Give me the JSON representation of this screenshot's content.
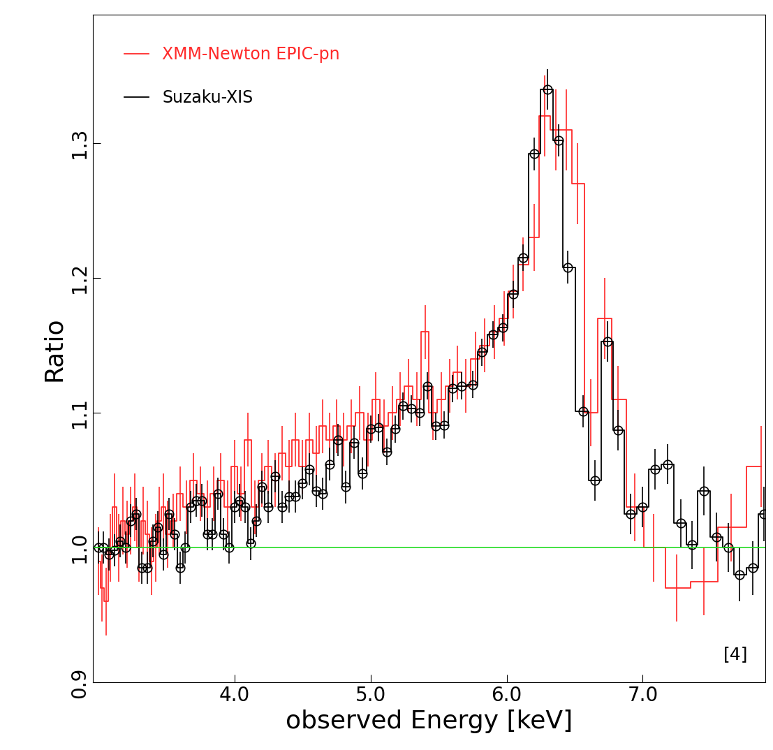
{
  "chart_data": {
    "type": "line",
    "x_label": "observed Energy [keV]",
    "y_label": "Ratio",
    "annotations": [
      "[4]"
    ],
    "xlim": [
      2.96,
      7.9
    ],
    "ylim": [
      0.9,
      1.395
    ],
    "xticks": [
      4.0,
      5.0,
      6.0,
      7.0
    ],
    "yticks": [
      0.9,
      1.0,
      1.1,
      1.2,
      1.3
    ],
    "reference_value": 1.0,
    "reference_color": "#22dd22",
    "legend": "upper left",
    "series": [
      {
        "name": "XMM-Newton EPIC-pn",
        "color": "#ff2a2a",
        "line_style": "steps",
        "marker": "none",
        "x": [
          3.0,
          3.03,
          3.06,
          3.09,
          3.12,
          3.15,
          3.18,
          3.21,
          3.24,
          3.27,
          3.3,
          3.33,
          3.36,
          3.39,
          3.42,
          3.45,
          3.48,
          3.51,
          3.55,
          3.6,
          3.65,
          3.7,
          3.75,
          3.8,
          3.85,
          3.9,
          3.95,
          4.0,
          4.05,
          4.1,
          4.15,
          4.2,
          4.25,
          4.3,
          4.35,
          4.4,
          4.45,
          4.5,
          4.55,
          4.6,
          4.65,
          4.7,
          4.75,
          4.8,
          4.86,
          4.92,
          4.98,
          5.04,
          5.1,
          5.16,
          5.22,
          5.28,
          5.34,
          5.4,
          5.46,
          5.52,
          5.58,
          5.64,
          5.7,
          5.77,
          5.84,
          5.91,
          5.98,
          6.05,
          6.12,
          6.2,
          6.28,
          6.36,
          6.44,
          6.52,
          6.62,
          6.72,
          6.82,
          6.94,
          7.08,
          7.25,
          7.45,
          7.65,
          7.87
        ],
        "values": [
          0.99,
          0.97,
          0.96,
          1.0,
          1.03,
          1.0,
          1.02,
          1.01,
          1.02,
          1.03,
          1.0,
          1.02,
          1.01,
          0.99,
          1.0,
          1.02,
          1.03,
          1.01,
          1.02,
          1.04,
          1.03,
          1.05,
          1.04,
          1.03,
          1.04,
          1.05,
          1.03,
          1.06,
          1.04,
          1.08,
          1.03,
          1.05,
          1.06,
          1.05,
          1.07,
          1.06,
          1.08,
          1.06,
          1.08,
          1.07,
          1.09,
          1.08,
          1.09,
          1.08,
          1.09,
          1.1,
          1.08,
          1.11,
          1.09,
          1.1,
          1.11,
          1.12,
          1.11,
          1.16,
          1.1,
          1.11,
          1.12,
          1.13,
          1.12,
          1.14,
          1.15,
          1.16,
          1.17,
          1.19,
          1.21,
          1.23,
          1.32,
          1.31,
          1.31,
          1.27,
          1.1,
          1.17,
          1.11,
          1.03,
          1.0,
          0.97,
          0.975,
          1.015,
          1.06
        ],
        "errors": [
          0.025,
          0.025,
          0.025,
          0.025,
          0.025,
          0.025,
          0.025,
          0.025,
          0.025,
          0.025,
          0.025,
          0.025,
          0.025,
          0.025,
          0.025,
          0.025,
          0.025,
          0.025,
          0.02,
          0.02,
          0.02,
          0.02,
          0.02,
          0.02,
          0.02,
          0.02,
          0.02,
          0.02,
          0.02,
          0.02,
          0.02,
          0.02,
          0.02,
          0.02,
          0.02,
          0.02,
          0.02,
          0.02,
          0.02,
          0.02,
          0.02,
          0.02,
          0.02,
          0.02,
          0.02,
          0.02,
          0.02,
          0.02,
          0.02,
          0.02,
          0.02,
          0.02,
          0.02,
          0.02,
          0.02,
          0.02,
          0.02,
          0.02,
          0.02,
          0.02,
          0.02,
          0.02,
          0.02,
          0.02,
          0.02,
          0.025,
          0.03,
          0.03,
          0.03,
          0.03,
          0.025,
          0.03,
          0.025,
          0.025,
          0.025,
          0.025,
          0.025,
          0.025,
          0.03
        ]
      },
      {
        "name": "Suzaku-XIS",
        "color": "#000000",
        "line_style": "steps",
        "marker": "circle",
        "x": [
          3.0,
          3.04,
          3.08,
          3.12,
          3.16,
          3.2,
          3.24,
          3.28,
          3.32,
          3.36,
          3.4,
          3.44,
          3.48,
          3.52,
          3.56,
          3.6,
          3.64,
          3.68,
          3.72,
          3.76,
          3.8,
          3.84,
          3.88,
          3.92,
          3.96,
          4.0,
          4.04,
          4.08,
          4.12,
          4.16,
          4.2,
          4.25,
          4.3,
          4.35,
          4.4,
          4.45,
          4.5,
          4.55,
          4.6,
          4.65,
          4.7,
          4.76,
          4.82,
          4.88,
          4.94,
          5.0,
          5.06,
          5.12,
          5.18,
          5.24,
          5.3,
          5.36,
          5.42,
          5.48,
          5.54,
          5.6,
          5.67,
          5.75,
          5.82,
          5.9,
          5.97,
          6.05,
          6.12,
          6.2,
          6.3,
          6.38,
          6.45,
          6.56,
          6.65,
          6.74,
          6.82,
          6.91,
          7.0,
          7.09,
          7.18,
          7.28,
          7.36,
          7.45,
          7.54,
          7.63,
          7.71,
          7.81,
          7.89
        ],
        "values": [
          1.0,
          1.0,
          0.995,
          0.998,
          1.005,
          1.0,
          1.02,
          1.025,
          0.985,
          0.985,
          1.005,
          1.015,
          0.995,
          1.025,
          1.01,
          0.985,
          1.0,
          1.03,
          1.035,
          1.035,
          1.01,
          1.01,
          1.04,
          1.01,
          1.0,
          1.03,
          1.035,
          1.03,
          1.003,
          1.02,
          1.045,
          1.03,
          1.053,
          1.03,
          1.038,
          1.038,
          1.048,
          1.058,
          1.042,
          1.04,
          1.062,
          1.08,
          1.045,
          1.078,
          1.055,
          1.088,
          1.089,
          1.071,
          1.088,
          1.105,
          1.103,
          1.1,
          1.12,
          1.09,
          1.091,
          1.118,
          1.12,
          1.121,
          1.145,
          1.158,
          1.163,
          1.188,
          1.215,
          1.292,
          1.34,
          1.302,
          1.208,
          1.101,
          1.05,
          1.153,
          1.087,
          1.025,
          1.03,
          1.058,
          1.062,
          1.018,
          1.002,
          1.042,
          1.008,
          1.0,
          0.98,
          0.985,
          1.025
        ],
        "errors": [
          0.012,
          0.012,
          0.012,
          0.012,
          0.012,
          0.012,
          0.012,
          0.012,
          0.012,
          0.012,
          0.012,
          0.012,
          0.012,
          0.012,
          0.012,
          0.012,
          0.012,
          0.012,
          0.012,
          0.012,
          0.012,
          0.012,
          0.012,
          0.012,
          0.012,
          0.012,
          0.012,
          0.012,
          0.012,
          0.012,
          0.012,
          0.012,
          0.012,
          0.012,
          0.012,
          0.012,
          0.012,
          0.012,
          0.012,
          0.012,
          0.012,
          0.012,
          0.012,
          0.012,
          0.012,
          0.01,
          0.01,
          0.01,
          0.01,
          0.01,
          0.01,
          0.01,
          0.01,
          0.01,
          0.01,
          0.01,
          0.01,
          0.01,
          0.01,
          0.01,
          0.01,
          0.01,
          0.01,
          0.012,
          0.015,
          0.012,
          0.012,
          0.012,
          0.015,
          0.015,
          0.015,
          0.015,
          0.015,
          0.015,
          0.015,
          0.018,
          0.018,
          0.018,
          0.018,
          0.018,
          0.02,
          0.02,
          0.02
        ]
      }
    ]
  }
}
